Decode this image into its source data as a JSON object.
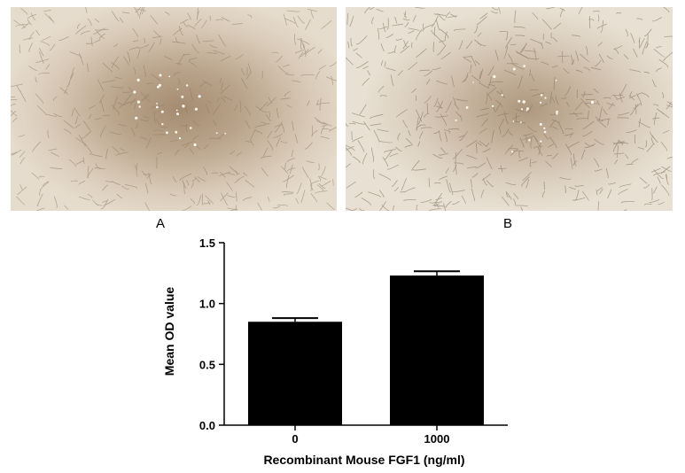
{
  "panels": {
    "a": {
      "label": "A"
    },
    "b": {
      "label": "B"
    }
  },
  "chart_data": {
    "type": "bar",
    "categories": [
      "0",
      "1000"
    ],
    "values": [
      0.85,
      1.23
    ],
    "errors": [
      0.03,
      0.035
    ],
    "xlabel": "Recombinant Mouse FGF1 (ng/ml)",
    "ylabel": "Mean OD value",
    "ylim": [
      0,
      1.5
    ],
    "yticks": [
      0.0,
      0.5,
      1.0,
      1.5
    ],
    "ytick_labels": [
      "0.0",
      "0.5",
      "1.0",
      "1.5"
    ],
    "bar_color": "#000000",
    "grid": false
  }
}
